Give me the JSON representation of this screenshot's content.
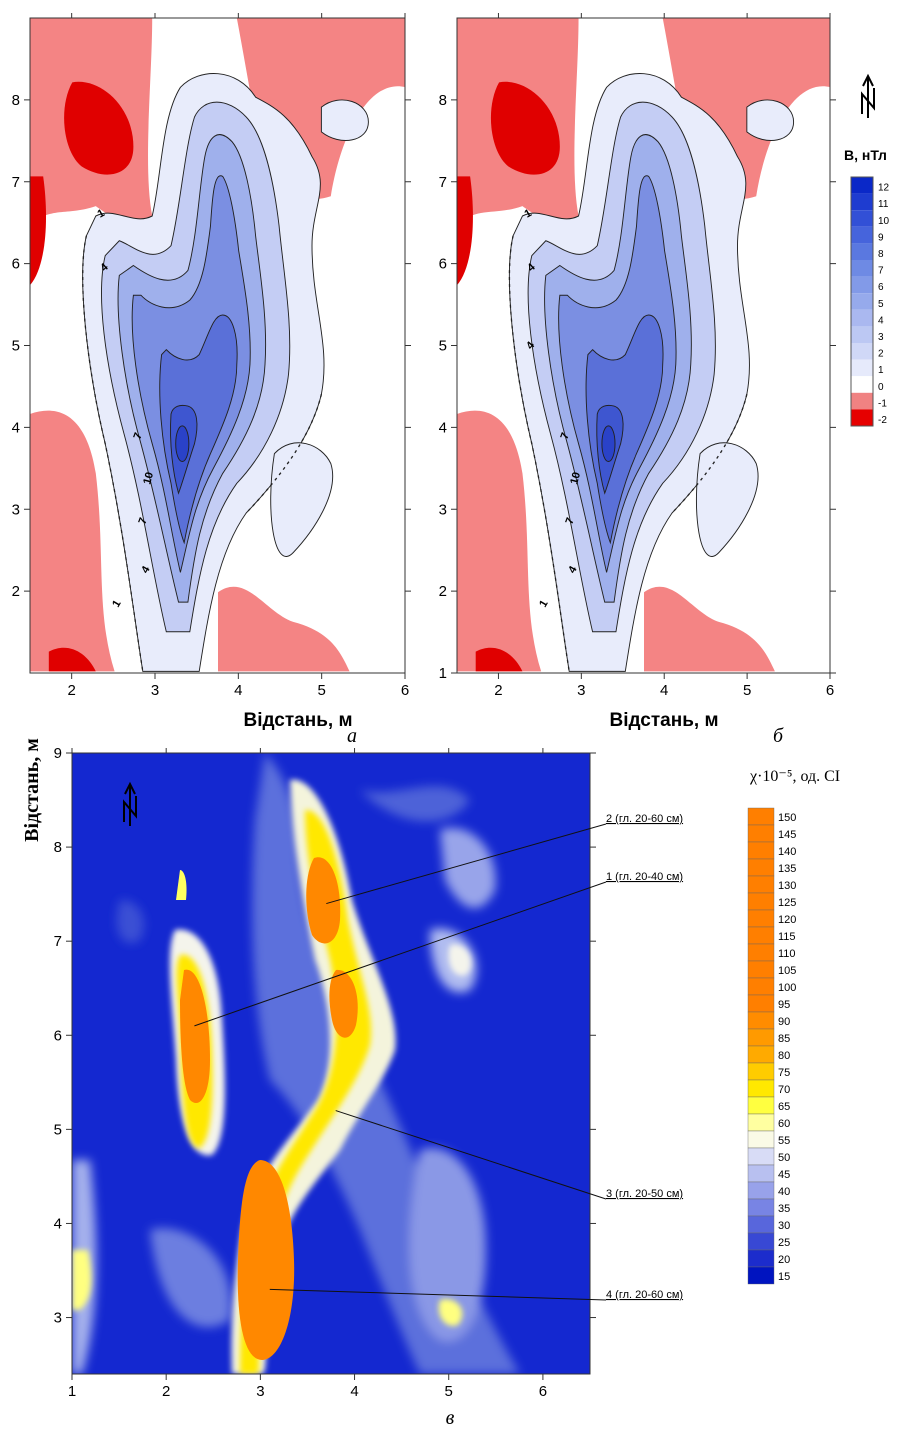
{
  "chart_data": [
    {
      "type": "heatmap",
      "panel_label": "а",
      "xlabel": "Відстань, м",
      "ylabel": "",
      "xlim": [
        1.5,
        6
      ],
      "ylim": [
        1,
        9
      ],
      "x_ticks": [
        "2",
        "3",
        "4",
        "5",
        "6"
      ],
      "y_ticks": [
        "2",
        "3",
        "4",
        "5",
        "6",
        "7",
        "8"
      ],
      "contour_labels": [
        "1",
        "4",
        "7",
        "10",
        "7",
        "4",
        "1"
      ],
      "north_arrow": false
    },
    {
      "type": "heatmap",
      "panel_label": "б",
      "xlabel": "Відстань, м",
      "ylabel": "",
      "xlim": [
        1.5,
        6
      ],
      "ylim": [
        1,
        9
      ],
      "x_ticks": [
        "2",
        "3",
        "4",
        "5",
        "6"
      ],
      "y_ticks": [
        "1",
        "2",
        "3",
        "4",
        "5",
        "6",
        "7",
        "8"
      ],
      "contour_labels": [
        "1",
        "4",
        "7",
        "10",
        "7",
        "4",
        "1",
        "4"
      ],
      "legend": {
        "title": "B, нТл",
        "levels": [
          "12",
          "11",
          "10",
          "9",
          "8",
          "7",
          "6",
          "5",
          "4",
          "3",
          "2",
          "1",
          "0",
          "-1",
          "-2"
        ],
        "colors": [
          "#0a28c8",
          "#1e3cd0",
          "#3250d6",
          "#4664dc",
          "#5a78e0",
          "#6e8ae4",
          "#829ae8",
          "#96aaec",
          "#aab8f0",
          "#bcc8f3",
          "#d0d8f7",
          "#e6eafb",
          "#ffffff",
          "#f08282",
          "#e60000"
        ]
      },
      "north_arrow": true
    },
    {
      "type": "heatmap",
      "panel_label": "в",
      "xlabel": "",
      "ylabel": "Відстань, м",
      "xlim": [
        1,
        6.5
      ],
      "ylim": [
        2.4,
        9
      ],
      "x_ticks": [
        "1",
        "2",
        "3",
        "4",
        "5",
        "6"
      ],
      "y_ticks": [
        "3",
        "4",
        "5",
        "6",
        "7",
        "8",
        "9"
      ],
      "annotations": [
        {
          "text": "2 (гл. 20-60 см)",
          "x": 3.7,
          "y": 7.4
        },
        {
          "text": "1 (гл. 20-40 см)",
          "x": 2.3,
          "y": 6.1
        },
        {
          "text": "3 (гл. 20-50 см)",
          "x": 3.8,
          "y": 5.2
        },
        {
          "text": "4 (гл. 20-60 см)",
          "x": 3.1,
          "y": 3.3
        }
      ],
      "legend": {
        "title": "χ·10⁻⁵, од. СІ",
        "levels": [
          "150",
          "145",
          "140",
          "135",
          "130",
          "125",
          "120",
          "115",
          "110",
          "105",
          "100",
          "95",
          "90",
          "85",
          "80",
          "75",
          "70",
          "65",
          "60",
          "55",
          "50",
          "45",
          "40",
          "35",
          "30",
          "25",
          "20",
          "15"
        ],
        "colors": [
          "#ff7f00",
          "#ff7f00",
          "#ff7f00",
          "#ff7f00",
          "#ff7f00",
          "#ff7f00",
          "#ff7f00",
          "#ff7f00",
          "#ff7f00",
          "#ff7f00",
          "#ff7f00",
          "#ff7f00",
          "#ff8c00",
          "#ff9a00",
          "#ffaa00",
          "#ffcc00",
          "#ffe800",
          "#ffff40",
          "#ffffa0",
          "#fafae6",
          "#d8dcf6",
          "#b8c0f0",
          "#98a2ea",
          "#7884e4",
          "#5866dc",
          "#3848d4",
          "#1c2ccc",
          "#0014c0"
        ]
      },
      "north_arrow": true
    }
  ]
}
